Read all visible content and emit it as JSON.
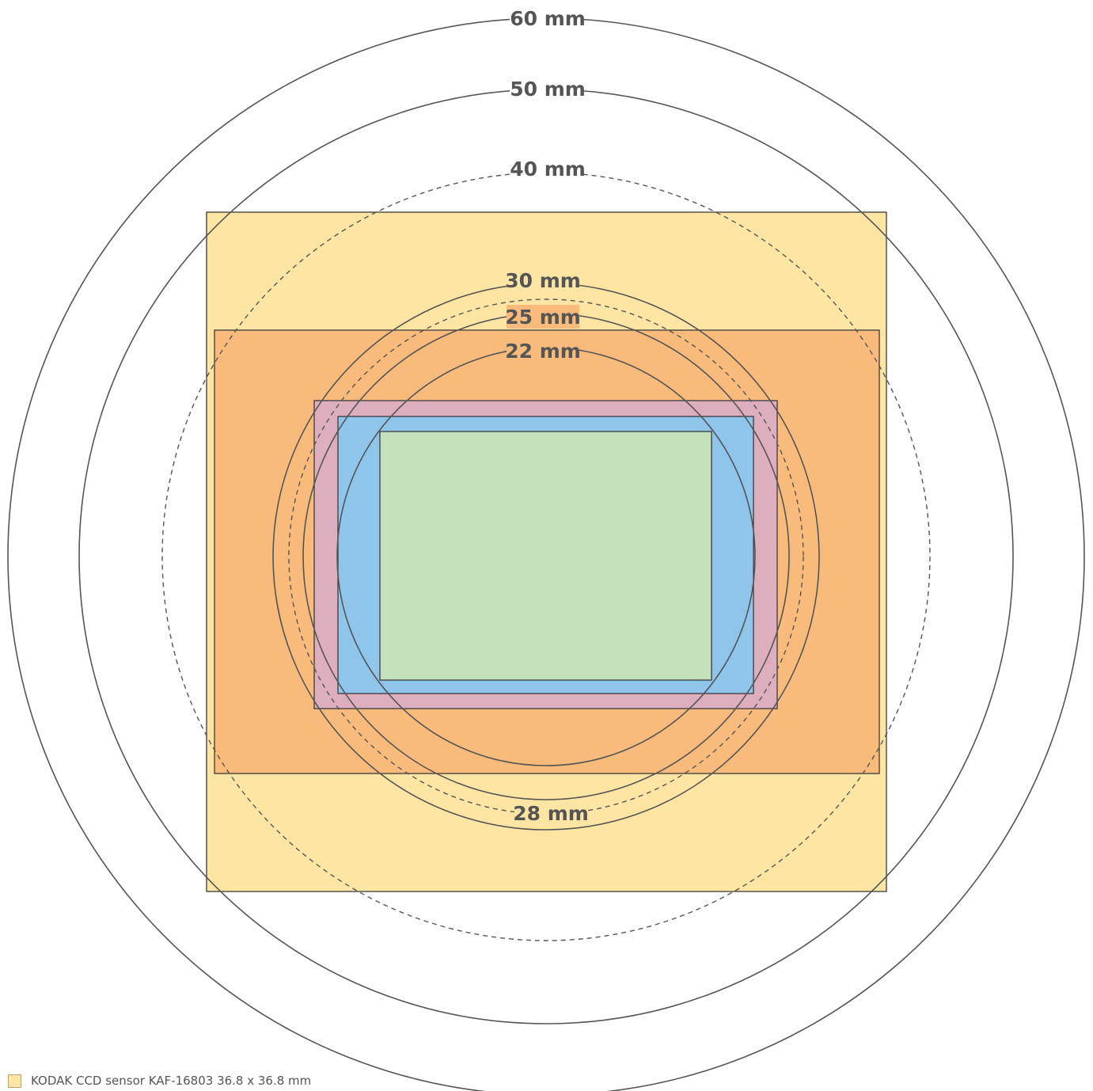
{
  "sensors": [
    {
      "name": "KODAK CCD sensor KAF-16803 36.8 x 36.8 mm",
      "color": "#ffe5a4"
    },
    {
      "name": "",
      "color": "#f9bb7c"
    },
    {
      "name": "",
      "color": "#dcaebe"
    },
    {
      "name": "",
      "color": "#8fc5eb"
    },
    {
      "name": "",
      "color": "#c5e1bc"
    }
  ],
  "circles": [
    {
      "label": "60 mm",
      "style": "solid"
    },
    {
      "label": "50 mm",
      "style": "solid"
    },
    {
      "label": "40 mm",
      "style": "dashed"
    },
    {
      "label": "30 mm",
      "style": "solid"
    },
    {
      "label": "28 mm",
      "style": "dashed"
    },
    {
      "label": "25 mm",
      "style": "solid"
    },
    {
      "label": "22 mm",
      "style": "solid"
    }
  ],
  "legend": {
    "text": "KODAK CCD sensor KAF-16803 36.8 x 36.8 mm",
    "color": "#ffe5a4"
  }
}
